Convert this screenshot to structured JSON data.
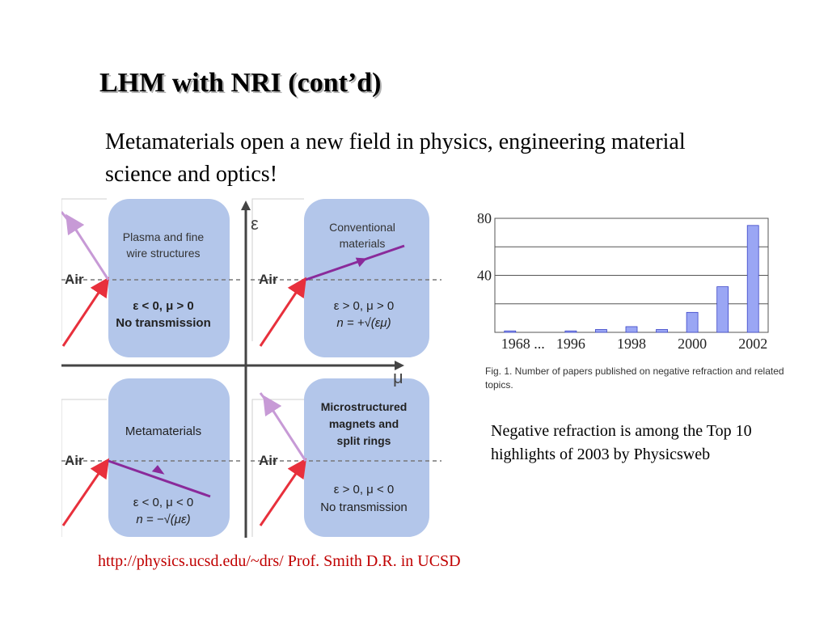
{
  "slide": {
    "title": "LHM with NRI (cont’d)",
    "subtitle": "Metamaterials open a new field in physics, engineering material science and optics!",
    "note": "Negative refraction is among the Top 10 highlights of 2003 by Physicsweb",
    "footer": "http://physics.ucsd.edu/~drs/ Prof. Smith D.R. in UCSD"
  },
  "diagram": {
    "axis_eps": "ε",
    "axis_mu": "μ",
    "air_label": "Air",
    "quadrants": {
      "top_left": {
        "title_line1": "Plasma and fine",
        "title_line2": "wire structures",
        "cond_line1": "ε < 0, μ > 0",
        "cond_line2": "No transmission"
      },
      "top_right": {
        "title_line1": "Conventional",
        "title_line2": "materials",
        "cond_line1": "ε > 0, μ > 0",
        "cond_line2": "n = +√(εμ)"
      },
      "bottom_left": {
        "title_line1": "Metamaterials",
        "cond_line1": "ε < 0, μ < 0",
        "cond_line2": "n = −√(με)"
      },
      "bottom_right": {
        "title_line1": "Microstructured",
        "title_line2": "magnets and",
        "title_line3": "split rings",
        "cond_line1": "ε > 0, μ < 0",
        "cond_line2": "No transmission"
      }
    },
    "colors": {
      "panel": "#b3c6ea",
      "incident": "#e8303c",
      "refracted": "#8a2a9a",
      "reflected": "#c79ad6"
    }
  },
  "chart_data": {
    "type": "bar",
    "categories": [
      "1968",
      "…",
      "1996",
      "1997",
      "1998",
      "1999",
      "2000",
      "2001",
      "2002"
    ],
    "x_tick_labels": [
      "1968 ...",
      "1996",
      "1998",
      "2000",
      "2002"
    ],
    "y_tick_labels": [
      "80",
      "40"
    ],
    "values": [
      1,
      0,
      1,
      2,
      4,
      2,
      14,
      32,
      75
    ],
    "ylim": [
      0,
      80
    ],
    "grid": true,
    "bar_color": "#9aa6f4",
    "caption": "Fig. 1. Number of papers published on negative refraction and related topics."
  }
}
